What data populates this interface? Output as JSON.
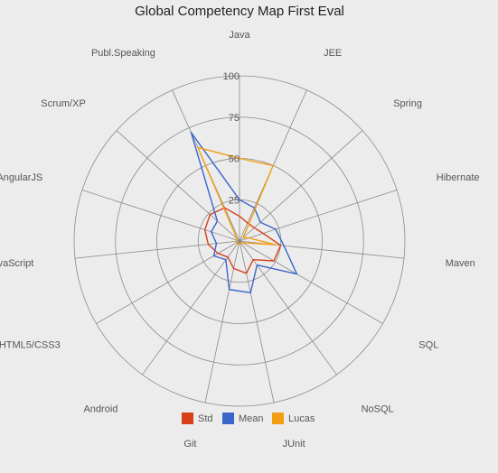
{
  "chart_data": {
    "type": "radar",
    "title": "Global Competency Map First Eval",
    "categories": [
      "Java",
      "JEE",
      "Spring",
      "Hibernate",
      "Maven",
      "SQL",
      "NoSQL",
      "JUnit",
      "Git",
      "Android",
      "HTML5/CSS3",
      "JavaScript",
      "AngularJS",
      "Scrum/XP",
      "Publ.Speaking"
    ],
    "rlim": [
      0,
      100
    ],
    "ticks": [
      {
        "value": 25,
        "label": "25"
      },
      {
        "value": 50,
        "label": "50"
      },
      {
        "value": 75,
        "label": "75"
      },
      {
        "value": 100,
        "label": "100"
      }
    ],
    "grid": true,
    "legend": "bottom",
    "series": [
      {
        "name": "Std",
        "color": "#d8401a",
        "values": [
          15,
          12,
          12,
          15,
          25,
          24,
          14,
          20,
          17,
          12,
          15,
          19,
          22,
          24,
          22
        ]
      },
      {
        "name": "Mean",
        "color": "#3a66cc",
        "values": [
          25,
          22,
          17,
          23,
          27,
          40,
          18,
          32,
          30,
          14,
          18,
          14,
          18,
          18,
          72
        ]
      },
      {
        "name": "Lucas",
        "color": "#f29e12",
        "values": [
          50,
          50,
          3,
          6,
          22,
          2,
          2,
          2,
          2,
          2,
          2,
          2,
          2,
          2,
          62
        ]
      }
    ]
  }
}
